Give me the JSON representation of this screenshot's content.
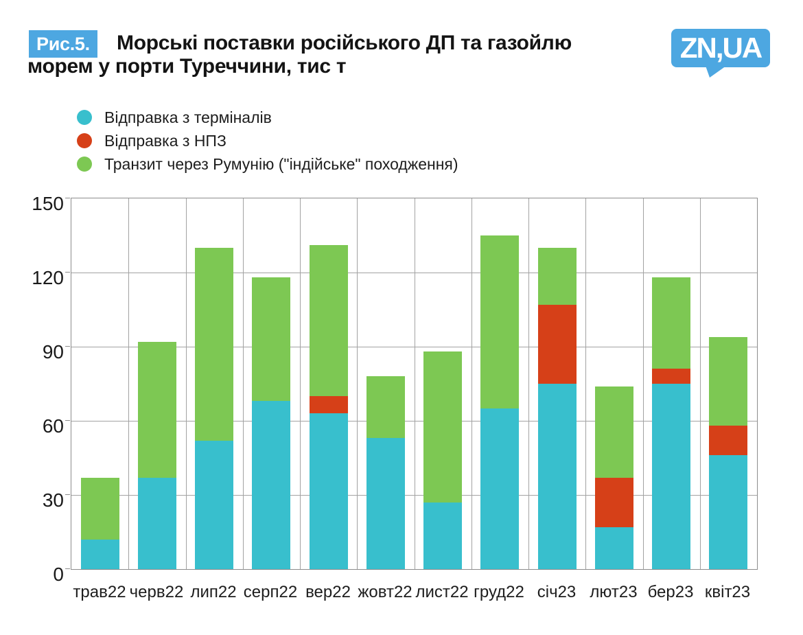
{
  "header": {
    "figure_badge": "Рис.5.",
    "title_line1": "Морські поставки російського ДП та газойлю",
    "title_line2": "морем у порти Туреччини, тис т",
    "logo_text": "ZN,UA"
  },
  "colors": {
    "accent_blue": "#4DA7E1",
    "terminals_cyan": "#38BFCD",
    "npz_red": "#D64018",
    "transit_green": "#7DC853",
    "grid_gray": "#A2A2A2",
    "border_gray": "#8C8C8C",
    "text_dark": "#1A1A1A"
  },
  "chart_data": {
    "type": "bar",
    "stacked": true,
    "title": "Морські поставки російського ДП та газойлю морем у порти Туреччини, тис т",
    "categories": [
      "трав22",
      "черв22",
      "лип22",
      "серп22",
      "вер22",
      "жовт22",
      "лист22",
      "груд22",
      "січ23",
      "лют23",
      "бер23",
      "квіт23"
    ],
    "series": [
      {
        "name": "Відправка з терміналів",
        "color": "#38BFCD",
        "values": [
          12,
          37,
          52,
          68,
          63,
          53,
          27,
          65,
          75,
          17,
          75,
          46
        ]
      },
      {
        "name": "Відправка з НПЗ",
        "color": "#D64018",
        "values": [
          0,
          0,
          0,
          0,
          7,
          0,
          0,
          0,
          32,
          20,
          6,
          12
        ]
      },
      {
        "name": "Транзит через Румунію (\"індійське\" походження)",
        "color": "#7DC853",
        "values": [
          25,
          55,
          78,
          50,
          61,
          25,
          61,
          70,
          23,
          37,
          37,
          36
        ]
      }
    ],
    "xlabel": "",
    "ylabel": "",
    "ylim": [
      0,
      150
    ],
    "yticks": [
      0,
      30,
      60,
      90,
      120,
      150
    ],
    "grid": true,
    "legend_position": "top-left"
  }
}
